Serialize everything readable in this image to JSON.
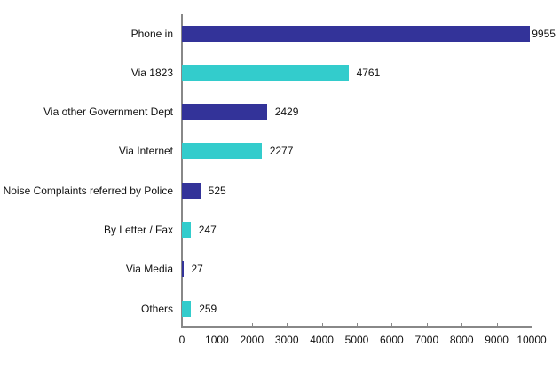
{
  "chart_data": {
    "type": "bar",
    "orientation": "horizontal",
    "title": "",
    "xlabel": "",
    "ylabel": "",
    "xlim": [
      0,
      10000
    ],
    "x_ticks": [
      "0",
      "1000",
      "2000",
      "3000",
      "4000",
      "5000",
      "6000",
      "7000",
      "8000",
      "9000",
      "10000"
    ],
    "grid": false,
    "legend": null,
    "categories": [
      "Phone in",
      "Via 1823",
      "Via other Government Dept",
      "Via Internet",
      "Noise Complaints referred by Police",
      "By Letter / Fax",
      "Via Media",
      "Others"
    ],
    "values": [
      9955,
      4761,
      2429,
      2277,
      525,
      247,
      27,
      259
    ],
    "data_labels": [
      "9955",
      "4761",
      "2429",
      "2277",
      "525",
      "247",
      "27",
      "259"
    ],
    "bar_colors": [
      "#333399",
      "#33CCCC",
      "#333399",
      "#33CCCC",
      "#333399",
      "#33CCCC",
      "#333399",
      "#33CCCC"
    ]
  },
  "colors": {
    "dark_bar": "#333399",
    "light_bar": "#33CCCC",
    "axis": "#888888"
  }
}
